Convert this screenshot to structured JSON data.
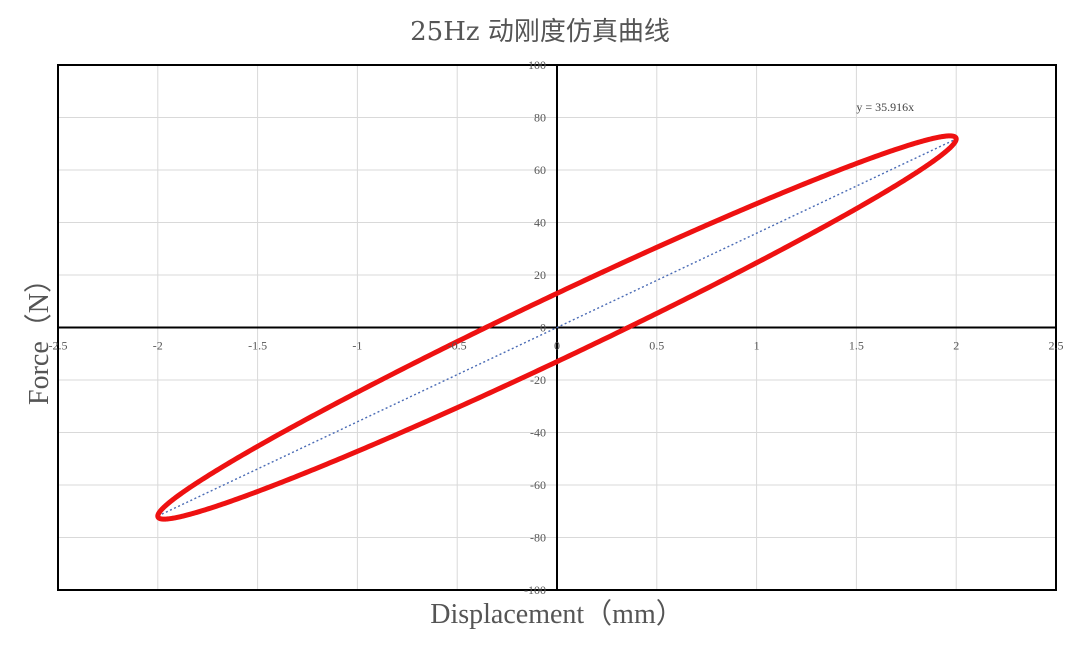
{
  "chart_data": {
    "type": "scatter",
    "title": "25Hz 动刚度仿真曲线",
    "xlabel": "Displacement（mm）",
    "ylabel": "Force（N）",
    "xlim": [
      -2.5,
      2.5
    ],
    "ylim": [
      -100,
      100
    ],
    "x_ticks": [
      -2.5,
      -2,
      -1.5,
      -1,
      -0.5,
      0,
      0.5,
      1,
      1.5,
      2,
      2.5
    ],
    "y_ticks": [
      -100,
      -80,
      -60,
      -40,
      -20,
      0,
      20,
      40,
      60,
      80,
      100
    ],
    "grid": true,
    "series": [
      {
        "kind": "hysteresis-loop",
        "color": "#ee1111",
        "amplitude_x": 2,
        "slope": 35.916,
        "loss_y": 13,
        "start_point": [
          0.31,
          22.5
        ]
      },
      {
        "kind": "linear-trendline",
        "color": "#4a6bb5",
        "slope": 35.916,
        "x_range": [
          -2,
          2
        ]
      }
    ],
    "annotations": [
      {
        "text": "y = 35.916x",
        "x": 1.5,
        "y": 84
      }
    ]
  }
}
